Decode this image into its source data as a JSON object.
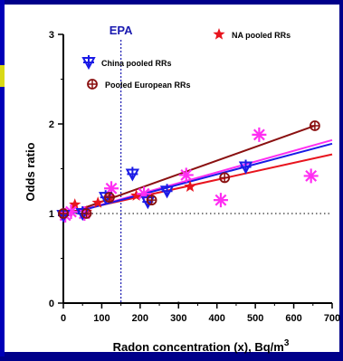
{
  "chart_data": {
    "type": "scatter",
    "xlabel": "Radon concentration (x), Bq/m",
    "xlabel_superscript": "3",
    "ylabel": "Odds ratio",
    "xlim": [
      0,
      700
    ],
    "ylim": [
      0,
      3
    ],
    "x_ticks": [
      "0",
      "100",
      "200",
      "300",
      "400",
      "500",
      "600",
      "700"
    ],
    "y_ticks": [
      "0",
      "1",
      "2",
      "3"
    ],
    "reference_line_y": 1,
    "epa_line": {
      "x": 150,
      "label": "EPA"
    },
    "series": [
      {
        "name": "NA pooled RRs",
        "marker": "star",
        "color": "#e8141e",
        "points": [
          [
            0,
            1.0
          ],
          [
            30,
            1.1
          ],
          [
            60,
            1.02
          ],
          [
            90,
            1.12
          ],
          [
            120,
            1.18
          ],
          [
            190,
            1.2
          ],
          [
            330,
            1.3
          ]
        ],
        "trend": [
          [
            0,
            1.0
          ],
          [
            700,
            1.66
          ]
        ]
      },
      {
        "name": "China pooled RRs",
        "marker": "triangle-cross",
        "color": "#1a1ae6",
        "points": [
          [
            0,
            0.98
          ],
          [
            50,
            1.0
          ],
          [
            110,
            1.18
          ],
          [
            180,
            1.44
          ],
          [
            220,
            1.13
          ],
          [
            270,
            1.25
          ],
          [
            475,
            1.52
          ]
        ],
        "trend": [
          [
            0,
            0.98
          ],
          [
            700,
            1.78
          ]
        ]
      },
      {
        "name": "Pooled European RRs",
        "marker": "circle-cross",
        "color": "#8a1010",
        "points": [
          [
            0,
            1.0
          ],
          [
            60,
            1.0
          ],
          [
            120,
            1.18
          ],
          [
            230,
            1.15
          ],
          [
            420,
            1.4
          ],
          [
            655,
            1.98
          ]
        ],
        "trend": [
          [
            0,
            0.98
          ],
          [
            655,
            1.98
          ]
        ]
      },
      {
        "name": "",
        "marker": "asterisk",
        "color": "#ff2ef2",
        "points": [
          [
            5,
            0.98
          ],
          [
            20,
            1.02
          ],
          [
            55,
            1.0
          ],
          [
            125,
            1.28
          ],
          [
            210,
            1.22
          ],
          [
            320,
            1.43
          ],
          [
            410,
            1.15
          ],
          [
            510,
            1.88
          ],
          [
            645,
            1.42
          ]
        ],
        "trend": [
          [
            0,
            0.98
          ],
          [
            700,
            1.82
          ]
        ]
      }
    ],
    "legend": [
      {
        "series": 0,
        "placement": "top-right"
      },
      {
        "series": 1,
        "placement": "top-left"
      },
      {
        "series": 2,
        "placement": "top-left"
      }
    ]
  }
}
